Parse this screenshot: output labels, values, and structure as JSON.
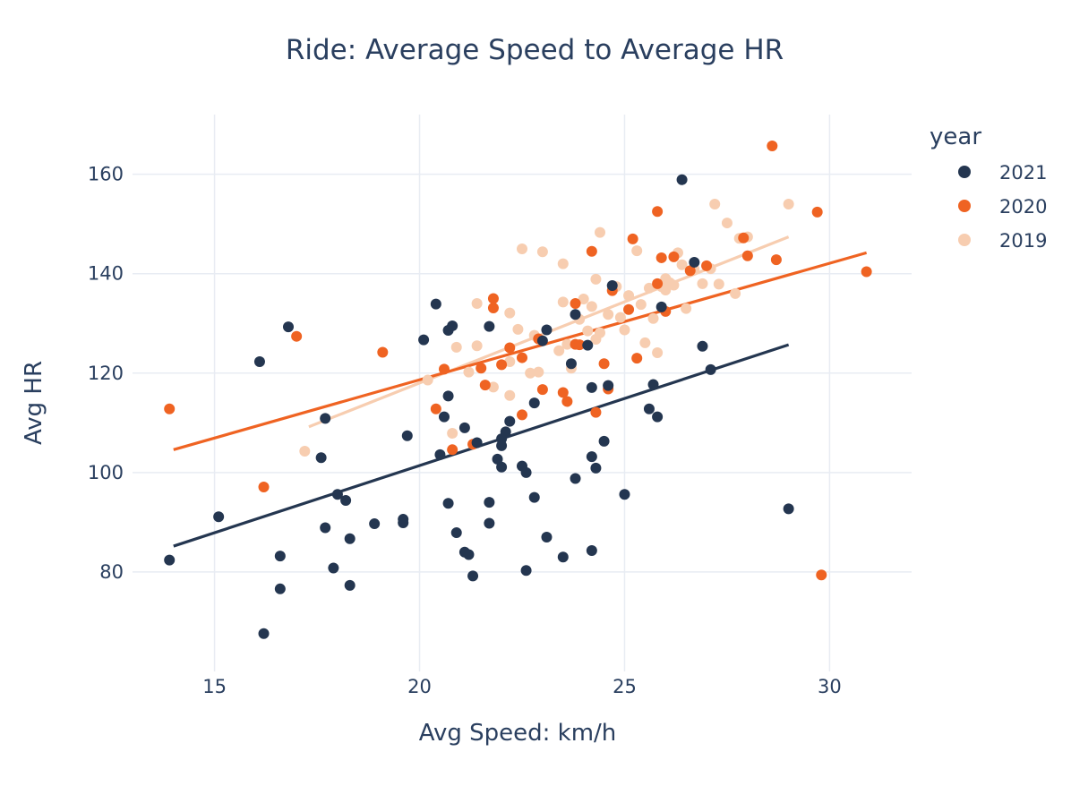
{
  "chart_data": {
    "type": "scatter",
    "title": "Ride: Average Speed to Average HR",
    "xlabel": "Avg Speed: km/h",
    "ylabel": "Avg HR",
    "xlim": [
      13,
      32
    ],
    "ylim": [
      60,
      172
    ],
    "x_ticks": [
      15,
      20,
      25,
      30
    ],
    "y_ticks": [
      80,
      100,
      120,
      140,
      160
    ],
    "grid": true,
    "legend": {
      "title": "year",
      "placement": "right"
    },
    "series": [
      {
        "name": "2021",
        "color": "#243650",
        "trendline": [
          [
            14.0,
            85.2
          ],
          [
            29.0,
            125.7
          ]
        ],
        "points": [
          [
            13.9,
            82.4
          ],
          [
            15.1,
            91.1
          ],
          [
            16.1,
            122.3
          ],
          [
            16.2,
            67.6
          ],
          [
            16.6,
            83.2
          ],
          [
            16.6,
            76.6
          ],
          [
            16.8,
            129.3
          ],
          [
            17.6,
            103.0
          ],
          [
            17.7,
            110.9
          ],
          [
            17.7,
            88.9
          ],
          [
            17.9,
            80.8
          ],
          [
            18.0,
            95.6
          ],
          [
            18.2,
            94.4
          ],
          [
            18.3,
            86.7
          ],
          [
            18.3,
            77.3
          ],
          [
            18.9,
            89.7
          ],
          [
            19.6,
            90.6
          ],
          [
            19.6,
            89.9
          ],
          [
            19.7,
            107.4
          ],
          [
            20.1,
            126.7
          ],
          [
            20.4,
            133.9
          ],
          [
            20.5,
            103.6
          ],
          [
            20.6,
            111.2
          ],
          [
            20.7,
            128.6
          ],
          [
            20.7,
            115.4
          ],
          [
            20.8,
            129.5
          ],
          [
            20.7,
            93.8
          ],
          [
            20.9,
            87.9
          ],
          [
            21.1,
            109.0
          ],
          [
            21.1,
            84.0
          ],
          [
            21.2,
            83.5
          ],
          [
            21.3,
            79.2
          ],
          [
            21.4,
            106.0
          ],
          [
            21.7,
            129.4
          ],
          [
            21.7,
            94.0
          ],
          [
            21.7,
            89.8
          ],
          [
            21.9,
            102.7
          ],
          [
            22.0,
            105.4
          ],
          [
            22.0,
            106.8
          ],
          [
            22.0,
            101.1
          ],
          [
            22.1,
            108.2
          ],
          [
            22.2,
            110.3
          ],
          [
            22.5,
            101.3
          ],
          [
            22.6,
            100.0
          ],
          [
            22.6,
            80.3
          ],
          [
            22.8,
            114.0
          ],
          [
            22.8,
            95.0
          ],
          [
            23.0,
            126.5
          ],
          [
            23.1,
            87.0
          ],
          [
            23.1,
            128.7
          ],
          [
            23.5,
            83.0
          ],
          [
            23.7,
            121.9
          ],
          [
            23.8,
            131.8
          ],
          [
            23.8,
            98.8
          ],
          [
            24.1,
            125.6
          ],
          [
            24.2,
            117.1
          ],
          [
            24.2,
            84.3
          ],
          [
            24.2,
            103.2
          ],
          [
            24.3,
            100.9
          ],
          [
            24.5,
            106.3
          ],
          [
            24.6,
            117.5
          ],
          [
            24.7,
            137.6
          ],
          [
            25.0,
            95.6
          ],
          [
            25.6,
            112.8
          ],
          [
            25.7,
            117.7
          ],
          [
            25.8,
            111.2
          ],
          [
            25.9,
            133.3
          ],
          [
            26.4,
            158.9
          ],
          [
            26.7,
            142.3
          ],
          [
            26.9,
            125.4
          ],
          [
            27.1,
            120.7
          ],
          [
            29.0,
            92.7
          ]
        ]
      },
      {
        "name": "2020",
        "color": "#ef6322",
        "trendline": [
          [
            14.0,
            104.6
          ],
          [
            30.9,
            144.2
          ]
        ],
        "points": [
          [
            13.9,
            112.8
          ],
          [
            16.2,
            97.1
          ],
          [
            17.0,
            127.4
          ],
          [
            19.1,
            124.2
          ],
          [
            20.4,
            112.8
          ],
          [
            20.6,
            120.8
          ],
          [
            20.8,
            104.6
          ],
          [
            21.3,
            105.7
          ],
          [
            21.5,
            121.0
          ],
          [
            21.6,
            117.6
          ],
          [
            21.8,
            135.0
          ],
          [
            21.8,
            133.1
          ],
          [
            22.0,
            121.7
          ],
          [
            22.2,
            125.1
          ],
          [
            22.5,
            123.1
          ],
          [
            22.5,
            111.6
          ],
          [
            22.9,
            126.9
          ],
          [
            23.0,
            116.7
          ],
          [
            23.5,
            116.1
          ],
          [
            23.6,
            114.3
          ],
          [
            23.8,
            125.8
          ],
          [
            23.8,
            134.0
          ],
          [
            23.9,
            125.7
          ],
          [
            24.2,
            144.5
          ],
          [
            24.3,
            112.1
          ],
          [
            24.5,
            121.9
          ],
          [
            24.6,
            116.8
          ],
          [
            24.7,
            136.6
          ],
          [
            25.1,
            132.8
          ],
          [
            25.2,
            147.0
          ],
          [
            25.3,
            123.0
          ],
          [
            25.8,
            152.5
          ],
          [
            25.8,
            138.0
          ],
          [
            25.9,
            143.2
          ],
          [
            26.0,
            132.4
          ],
          [
            26.2,
            143.4
          ],
          [
            26.6,
            140.6
          ],
          [
            27.0,
            141.6
          ],
          [
            27.9,
            147.2
          ],
          [
            28.0,
            143.6
          ],
          [
            28.6,
            165.7
          ],
          [
            28.7,
            142.8
          ],
          [
            29.7,
            152.4
          ],
          [
            29.8,
            79.4
          ],
          [
            30.9,
            140.4
          ]
        ]
      },
      {
        "name": "2019",
        "color": "#f7cdb0",
        "trendline": [
          [
            17.3,
            109.2
          ],
          [
            29.0,
            147.4
          ]
        ],
        "points": [
          [
            17.2,
            104.3
          ],
          [
            20.2,
            118.6
          ],
          [
            20.8,
            107.9
          ],
          [
            20.9,
            125.2
          ],
          [
            21.4,
            134.0
          ],
          [
            21.4,
            125.5
          ],
          [
            21.8,
            117.2
          ],
          [
            22.2,
            115.5
          ],
          [
            22.2,
            122.3
          ],
          [
            22.2,
            132.1
          ],
          [
            22.4,
            128.8
          ],
          [
            22.5,
            145.0
          ],
          [
            22.7,
            120.0
          ],
          [
            22.8,
            127.6
          ],
          [
            22.9,
            120.2
          ],
          [
            23.0,
            144.4
          ],
          [
            23.4,
            124.5
          ],
          [
            23.5,
            142.0
          ],
          [
            23.5,
            134.3
          ],
          [
            23.6,
            125.8
          ],
          [
            23.7,
            121.0
          ],
          [
            23.9,
            130.8
          ],
          [
            24.0,
            134.9
          ],
          [
            24.1,
            128.5
          ],
          [
            24.2,
            133.4
          ],
          [
            24.3,
            138.9
          ],
          [
            24.4,
            148.3
          ],
          [
            24.4,
            128.1
          ],
          [
            24.6,
            131.8
          ],
          [
            24.8,
            137.4
          ],
          [
            24.9,
            131.2
          ],
          [
            25.0,
            128.7
          ],
          [
            25.1,
            135.6
          ],
          [
            25.3,
            144.6
          ],
          [
            25.4,
            133.8
          ],
          [
            25.6,
            137.1
          ],
          [
            25.7,
            131.0
          ],
          [
            25.8,
            124.1
          ],
          [
            25.9,
            137.4
          ],
          [
            26.0,
            136.7
          ],
          [
            26.1,
            138.2
          ],
          [
            26.2,
            137.7
          ],
          [
            26.3,
            144.2
          ],
          [
            26.4,
            141.8
          ],
          [
            26.5,
            133.0
          ],
          [
            26.7,
            140.9
          ],
          [
            26.9,
            138.0
          ],
          [
            27.1,
            141.0
          ],
          [
            27.2,
            154.0
          ],
          [
            27.3,
            137.9
          ],
          [
            27.5,
            150.2
          ],
          [
            27.7,
            136.0
          ],
          [
            27.8,
            147.1
          ],
          [
            28.0,
            147.4
          ],
          [
            29.0,
            154.0
          ],
          [
            26.0,
            139.0
          ],
          [
            25.5,
            126.1
          ],
          [
            24.3,
            126.8
          ],
          [
            21.2,
            120.2
          ]
        ]
      }
    ]
  }
}
